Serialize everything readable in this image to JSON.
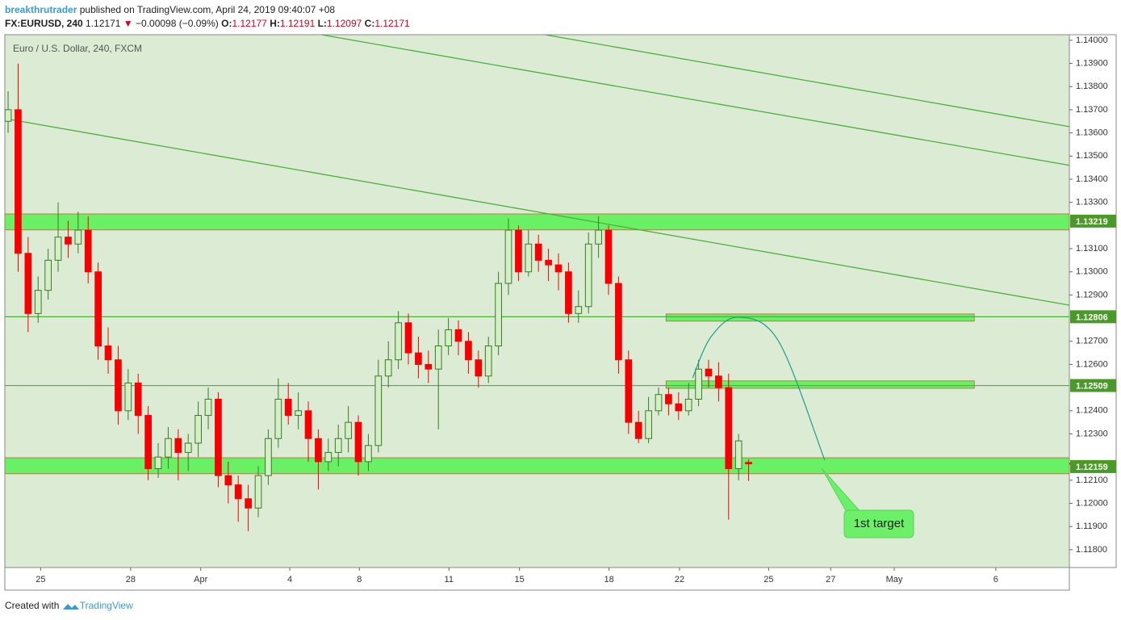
{
  "header": {
    "user": "breakthrutrader",
    "published": "published on TradingView.com, April 24, 2019 09:40:07 +08",
    "symbol": "FX:EURUSD, 240",
    "last": 1.12171,
    "change": "−0.00098 (−0.09%)",
    "ohlc": [
      {
        "key": "O:",
        "value": 1.12177
      },
      {
        "key": "H:",
        "value": 1.12191
      },
      {
        "key": "L:",
        "value": 1.12097
      },
      {
        "key": "C:",
        "value": 1.12171
      }
    ]
  },
  "footer": {
    "created": "Created with",
    "brand": "TradingView"
  },
  "chart_data": {
    "type": "candlestick",
    "title": "Euro / U.S. Dollar, 240, FXCM",
    "up_color": "#d4efc6",
    "up_edge": "#3a7a28",
    "down_color": "#f70000",
    "x": [
      0,
      2,
      4,
      6,
      8,
      10,
      12,
      14,
      16,
      18,
      20,
      22,
      24,
      26,
      28,
      30,
      32,
      34,
      36,
      38,
      40,
      42,
      44,
      46,
      48,
      50,
      52,
      54,
      56,
      58,
      60,
      62,
      64,
      66,
      68,
      70,
      72,
      74,
      76,
      78,
      80,
      82,
      84,
      86,
      88,
      90,
      92,
      94,
      96,
      98,
      100,
      102,
      104,
      106,
      108,
      110,
      112,
      114,
      116,
      118,
      120,
      122,
      124,
      126,
      128,
      130,
      132,
      134,
      136,
      138,
      140,
      142,
      144,
      146,
      148
    ],
    "open": [
      1.1365,
      1.137,
      1.1308,
      1.1282,
      1.1292,
      1.1305,
      1.1315,
      1.1312,
      1.1318,
      1.13,
      1.1268,
      1.1262,
      1.124,
      1.1252,
      1.1238,
      1.1215,
      1.122,
      1.1228,
      1.1222,
      1.1226,
      1.1238,
      1.1245,
      1.1212,
      1.1208,
      1.1202,
      1.1198,
      1.1212,
      1.1228,
      1.1245,
      1.1238,
      1.124,
      1.1228,
      1.1218,
      1.1222,
      1.1228,
      1.1235,
      1.1218,
      1.1225,
      1.1255,
      1.1262,
      1.1278,
      1.1265,
      1.126,
      1.1258,
      1.1268,
      1.1275,
      1.127,
      1.1262,
      1.1255,
      1.1268,
      1.1295,
      1.1318,
      1.13,
      1.1312,
      1.1305,
      1.1303,
      1.13,
      1.1282,
      1.1285,
      1.1312,
      1.1318,
      1.1295,
      1.1262,
      1.1235,
      1.1228,
      1.124,
      1.1247,
      1.1243,
      1.124,
      1.1245,
      1.1258,
      1.1255,
      1.125,
      1.1215,
      1.12177
    ],
    "high": [
      1.1378,
      1.139,
      1.1315,
      1.1298,
      1.131,
      1.133,
      1.1322,
      1.1326,
      1.1324,
      1.1304,
      1.1276,
      1.1268,
      1.1258,
      1.1256,
      1.1242,
      1.1226,
      1.1233,
      1.1232,
      1.123,
      1.1244,
      1.125,
      1.1248,
      1.1218,
      1.1212,
      1.1208,
      1.1216,
      1.1232,
      1.1254,
      1.1252,
      1.1248,
      1.1244,
      1.1232,
      1.1228,
      1.1234,
      1.1242,
      1.1238,
      1.123,
      1.1262,
      1.127,
      1.1283,
      1.1282,
      1.1272,
      1.1266,
      1.1275,
      1.128,
      1.1279,
      1.1274,
      1.1266,
      1.1272,
      1.13,
      1.1323,
      1.132,
      1.1318,
      1.1316,
      1.131,
      1.1308,
      1.1304,
      1.1292,
      1.1317,
      1.1324,
      1.132,
      1.1298,
      1.1266,
      1.124,
      1.1246,
      1.125,
      1.125,
      1.1248,
      1.1252,
      1.1262,
      1.1262,
      1.1261,
      1.1256,
      1.123,
      1.12191
    ],
    "low": [
      1.136,
      1.13,
      1.1274,
      1.1278,
      1.1288,
      1.13,
      1.1306,
      1.1308,
      1.1295,
      1.1262,
      1.1256,
      1.1234,
      1.1236,
      1.123,
      1.121,
      1.1211,
      1.1215,
      1.121,
      1.1214,
      1.122,
      1.1232,
      1.1207,
      1.12,
      1.1192,
      1.1188,
      1.1194,
      1.1208,
      1.1224,
      1.1234,
      1.1232,
      1.1218,
      1.1206,
      1.1214,
      1.1216,
      1.1222,
      1.1212,
      1.1214,
      1.1222,
      1.125,
      1.1258,
      1.126,
      1.1254,
      1.1252,
      1.1232,
      1.1264,
      1.1264,
      1.1256,
      1.125,
      1.1252,
      1.1264,
      1.129,
      1.1296,
      1.1298,
      1.13,
      1.1296,
      1.1292,
      1.1278,
      1.1278,
      1.1282,
      1.1306,
      1.129,
      1.1256,
      1.123,
      1.1226,
      1.1226,
      1.1238,
      1.1238,
      1.1236,
      1.1238,
      1.1242,
      1.125,
      1.1244,
      1.1193,
      1.121,
      1.12097
    ],
    "close": [
      1.137,
      1.1308,
      1.1282,
      1.1292,
      1.1305,
      1.1315,
      1.1312,
      1.1318,
      1.13,
      1.1268,
      1.1262,
      1.124,
      1.1252,
      1.1238,
      1.1215,
      1.122,
      1.1228,
      1.1222,
      1.1226,
      1.1238,
      1.1245,
      1.1212,
      1.1208,
      1.1202,
      1.1198,
      1.1212,
      1.1228,
      1.1245,
      1.1238,
      1.124,
      1.1228,
      1.1218,
      1.1222,
      1.1228,
      1.1235,
      1.1218,
      1.1225,
      1.1255,
      1.1262,
      1.1278,
      1.1265,
      1.126,
      1.1258,
      1.1268,
      1.1275,
      1.127,
      1.1262,
      1.1255,
      1.1268,
      1.1295,
      1.1318,
      1.13,
      1.1312,
      1.1305,
      1.1303,
      1.13,
      1.1282,
      1.1285,
      1.1312,
      1.1318,
      1.1295,
      1.1262,
      1.1235,
      1.1228,
      1.124,
      1.1247,
      1.1243,
      1.124,
      1.1245,
      1.1258,
      1.1255,
      1.125,
      1.1215,
      1.1227,
      1.12171
    ],
    "xlim": [
      -0.65,
      212.1
    ],
    "ylim": [
      1.11723,
      1.14024
    ],
    "xticks": [
      {
        "value": 6.5,
        "label": "25"
      },
      {
        "value": 24.5,
        "label": "28"
      },
      {
        "value": 38.5,
        "label": "Apr"
      },
      {
        "value": 56.3,
        "label": "4"
      },
      {
        "value": 70.2,
        "label": "8"
      },
      {
        "value": 88.1,
        "label": "11"
      },
      {
        "value": 102.2,
        "label": "15"
      },
      {
        "value": 120.1,
        "label": "18"
      },
      {
        "value": 134.2,
        "label": "22"
      },
      {
        "value": 152,
        "label": "25"
      },
      {
        "value": 164.4,
        "label": "27"
      },
      {
        "value": 177.1,
        "label": "May"
      },
      {
        "value": 197.4,
        "label": "6"
      }
    ],
    "yticks": [
      {
        "value": 1.118,
        "label": "1.11800"
      },
      {
        "value": 1.119,
        "label": "1.11900"
      },
      {
        "value": 1.12,
        "label": "1.12000"
      },
      {
        "value": 1.121,
        "label": "1.12100"
      },
      {
        "value": 1.123,
        "label": "1.12300"
      },
      {
        "value": 1.124,
        "label": "1.12400"
      },
      {
        "value": 1.126,
        "label": "1.12600"
      },
      {
        "value": 1.127,
        "label": "1.12700"
      },
      {
        "value": 1.129,
        "label": "1.12900"
      },
      {
        "value": 1.13,
        "label": "1.13000"
      },
      {
        "value": 1.131,
        "label": "1.13100"
      },
      {
        "value": 1.133,
        "label": "1.13300"
      },
      {
        "value": 1.134,
        "label": "1.13400"
      },
      {
        "value": 1.135,
        "label": "1.13500"
      },
      {
        "value": 1.136,
        "label": "1.13600"
      },
      {
        "value": 1.137,
        "label": "1.13700"
      },
      {
        "value": 1.138,
        "label": "1.13800"
      },
      {
        "value": 1.139,
        "label": "1.13900"
      },
      {
        "value": 1.14,
        "label": "1.14000"
      }
    ],
    "grid": false,
    "levels": [
      1.13219,
      1.12806,
      1.12509,
      1.12159
    ],
    "level_lines": [
      1.12806,
      1.12509
    ],
    "zones": [
      {
        "lo": 1.13181,
        "hi": 1.1325
      },
      {
        "lo": 1.12128,
        "hi": 1.12197
      },
      {
        "x0": 131.5,
        "x1": 193.1,
        "lo": 1.12787,
        "hi": 1.12818
      },
      {
        "x0": 131.5,
        "x1": 193.1,
        "lo": 1.12497,
        "hi": 1.12529
      }
    ],
    "zone_color": "#5cf25a",
    "trend_color": "#4caf3e",
    "trend_lines": [
      {
        "x": [
          -0.65,
          212.1
        ],
        "y": [
          1.13662,
          1.12856
        ]
      },
      {
        "x": [
          62.6,
          212.1
        ],
        "y": [
          1.14024,
          1.1346
        ]
      },
      {
        "x": [
          107.3,
          212.1
        ],
        "y": [
          1.14024,
          1.13627
        ]
      }
    ],
    "path_projection": {
      "x": [
        136.8,
        140.5,
        146,
        154,
        163.2
      ],
      "y": [
        1.12542,
        1.1272,
        1.12804,
        1.127,
        1.12187
      ],
      "color": "#1e9e8c"
    },
    "annotations": [
      {
        "text": "1st target"
      }
    ]
  }
}
